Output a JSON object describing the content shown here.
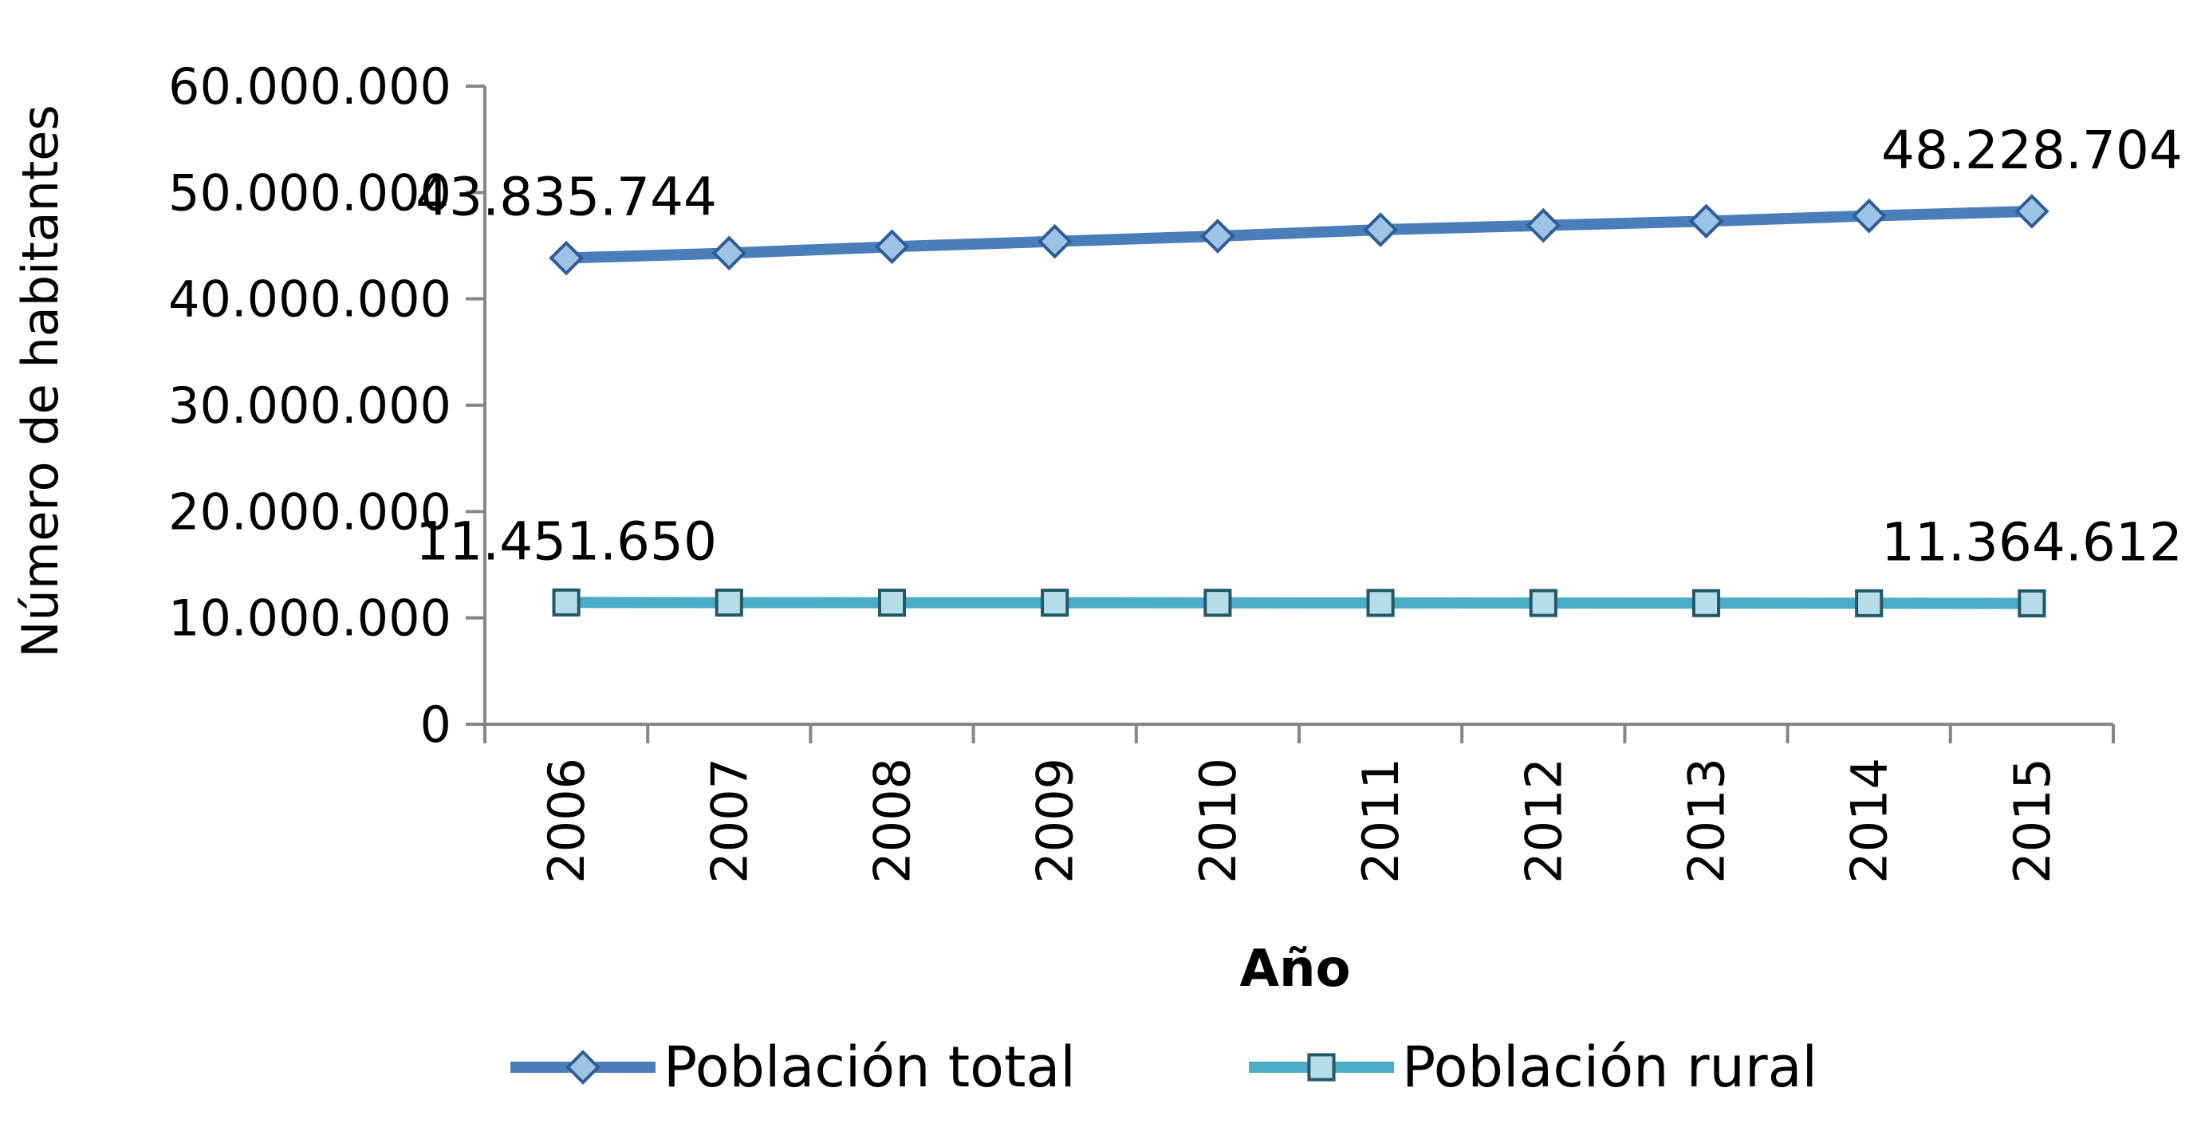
{
  "chart_data": {
    "type": "line",
    "title": "",
    "xlabel": "Año",
    "ylabel": "Número de habitantes",
    "ylim": [
      0,
      60000000
    ],
    "yticks": [
      {
        "value": 0,
        "label": "0"
      },
      {
        "value": 10000000,
        "label": "10.000.000"
      },
      {
        "value": 20000000,
        "label": "20.000.000"
      },
      {
        "value": 30000000,
        "label": "30.000.000"
      },
      {
        "value": 40000000,
        "label": "40.000.000"
      },
      {
        "value": 50000000,
        "label": "50.000.000"
      },
      {
        "value": 60000000,
        "label": "60.000.000"
      }
    ],
    "categories": [
      "2006",
      "2007",
      "2008",
      "2009",
      "2010",
      "2011",
      "2012",
      "2013",
      "2014",
      "2015"
    ],
    "grid": false,
    "legend_position": "bottom",
    "series": [
      {
        "name": "Población total",
        "color": "#4a7ebb",
        "marker": "diamond",
        "marker_fill": "#9dc3e6",
        "values": [
          43835744,
          44300000,
          44900000,
          45400000,
          45900000,
          46500000,
          46900000,
          47300000,
          47800000,
          48228704
        ],
        "data_labels": [
          {
            "index": 0,
            "text": "43.835.744"
          },
          {
            "index": 9,
            "text": "48.228.704"
          }
        ]
      },
      {
        "name": "Población rural",
        "color": "#4bacc6",
        "marker": "square",
        "marker_fill": "#b7dee8",
        "values": [
          11451650,
          11440000,
          11430000,
          11430000,
          11420000,
          11410000,
          11400000,
          11390000,
          11380000,
          11364612
        ],
        "data_labels": [
          {
            "index": 0,
            "text": "11.451.650"
          },
          {
            "index": 9,
            "text": "11.364.612"
          }
        ]
      }
    ]
  }
}
